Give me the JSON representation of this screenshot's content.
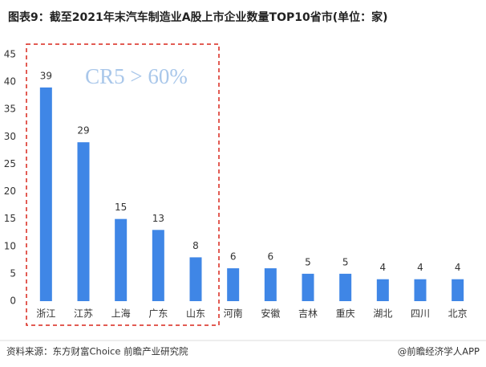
{
  "chart_data": {
    "type": "bar",
    "title": "图表9：截至2021年末汽车制造业A股上市企业数量TOP10省市(单位：家)",
    "categories": [
      "浙江",
      "江苏",
      "上海",
      "广东",
      "山东",
      "河南",
      "安徽",
      "吉林",
      "重庆",
      "湖北",
      "四川",
      "北京"
    ],
    "values": [
      39,
      29,
      15,
      13,
      8,
      6,
      6,
      5,
      5,
      4,
      4,
      4
    ],
    "color": "#3f86e6",
    "ylim": [
      0,
      45
    ],
    "yticks": [
      0,
      5,
      10,
      15,
      20,
      25,
      30,
      35,
      40,
      45
    ],
    "grid": false,
    "annotation": "CR5 > 60%",
    "source": "资料来源：东方财富Choice 前瞻产业研究院",
    "credit": "@前瞻经济学人APP"
  }
}
